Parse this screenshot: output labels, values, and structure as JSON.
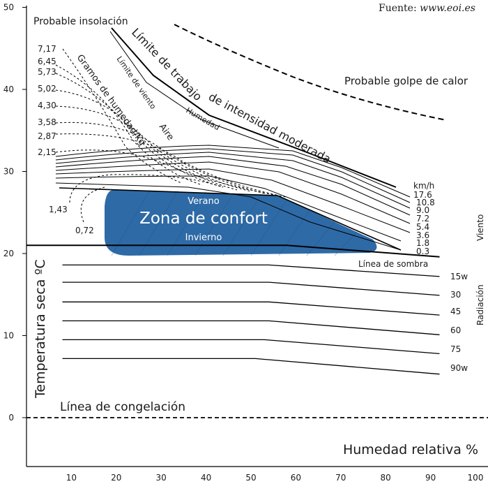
{
  "source": {
    "prefix": "Fuente: ",
    "site": "www.eoi.es"
  },
  "chart_data": {
    "type": "line",
    "title": "",
    "xlabel": "Humedad relativa %",
    "ylabel": "Temperatura seca ºC",
    "xlim": [
      0,
      100
    ],
    "ylim": [
      -5,
      50
    ],
    "x_ticks": [
      "10",
      "20",
      "30",
      "40",
      "50",
      "60",
      "70",
      "80",
      "90",
      "100"
    ],
    "y_ticks": [
      "0",
      "10",
      "20",
      "30",
      "40",
      "50"
    ],
    "side_labels": {
      "wind": "Viento",
      "radiation": "Radiación"
    },
    "zone": {
      "main": "Zona de confort",
      "summer": "Verano",
      "winter": "Invierno",
      "color": "#2e6aa6"
    },
    "annotations": {
      "insolation": "Probable insolación",
      "heatstroke": "Probable golpe de calor",
      "work_limit_1": "Límite de trabajo",
      "work_limit_2": "de intensidad moderada",
      "wind_limit": "Límite de viento",
      "humidity": "Humedad",
      "moisture_1": "Gramos de humedad/kg",
      "moisture_2": "Aire",
      "shade_line": "Línea de sombra",
      "freezing": "Línea de congelación"
    },
    "moisture_values": [
      "7,17",
      "6,45",
      "5,73",
      "5,02",
      "4,30",
      "3,58",
      "2,87",
      "2,15",
      "1,43",
      "0,72"
    ],
    "wind_unit": "km/h",
    "wind_values": [
      "17.6",
      "10.8",
      "9.0",
      "7.2",
      "5.4",
      "3.6",
      "1.8",
      "0.3"
    ],
    "radiation_values": [
      "15w",
      "30",
      "45",
      "60",
      "75",
      "90w"
    ],
    "series": [
      {
        "name": "Línea de sombra",
        "points": [
          [
            0,
            21
          ],
          [
            58,
            21
          ],
          [
            92,
            19.6
          ]
        ]
      },
      {
        "name": "15w",
        "points": [
          [
            8,
            18.6
          ],
          [
            54,
            18.6
          ],
          [
            92,
            17.2
          ]
        ]
      },
      {
        "name": "30",
        "points": [
          [
            8,
            16.5
          ],
          [
            54,
            16.5
          ],
          [
            92,
            14.9
          ]
        ]
      },
      {
        "name": "45",
        "points": [
          [
            8,
            14.1
          ],
          [
            54,
            14.1
          ],
          [
            92,
            12.5
          ]
        ]
      },
      {
        "name": "60",
        "points": [
          [
            8,
            11.8
          ],
          [
            54,
            11.8
          ],
          [
            92,
            10.1
          ]
        ]
      },
      {
        "name": "75",
        "points": [
          [
            8,
            9.5
          ],
          [
            53,
            9.5
          ],
          [
            92,
            7.8
          ]
        ]
      },
      {
        "name": "90w",
        "points": [
          [
            8,
            7.2
          ],
          [
            51,
            7.2
          ],
          [
            92,
            5.3
          ]
        ]
      }
    ],
    "grid": false
  }
}
